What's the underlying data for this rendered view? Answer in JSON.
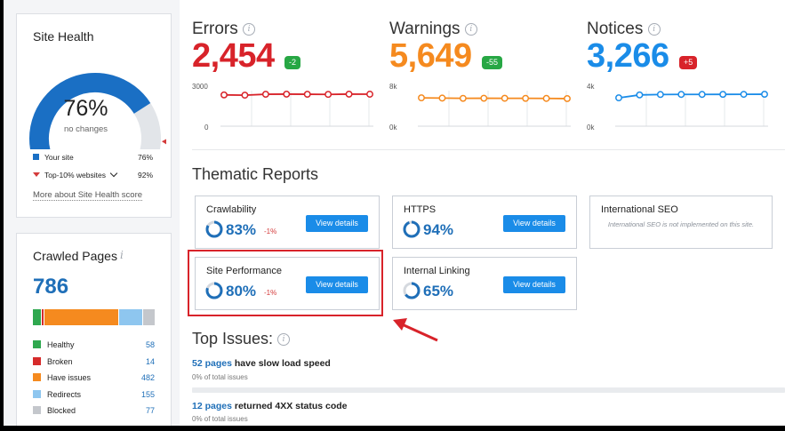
{
  "site_health": {
    "title": "Site Health",
    "score": "76%",
    "change_text": "no changes",
    "score_value": 0.76,
    "top10_value": 0.92,
    "legend": [
      {
        "label": "Your site",
        "value": "76%",
        "color": "#1f6fb8"
      },
      {
        "label": "Top-10% websites",
        "value": "92%",
        "color": "#d43b3b"
      }
    ],
    "link": "More about Site Health score"
  },
  "crawled_pages": {
    "title": "Crawled Pages",
    "total": "786",
    "categories": [
      {
        "label": "Healthy",
        "value": "58",
        "count": 58,
        "color": "#2fa84f"
      },
      {
        "label": "Broken",
        "value": "14",
        "count": 14,
        "color": "#d62b2b"
      },
      {
        "label": "Have issues",
        "value": "482",
        "count": 482,
        "color": "#f58a1f"
      },
      {
        "label": "Redirects",
        "value": "155",
        "count": 155,
        "color": "#8ec6ef"
      },
      {
        "label": "Blocked",
        "value": "77",
        "count": 77,
        "color": "#c4c7cc"
      }
    ]
  },
  "metrics": [
    {
      "title": "Errors",
      "value": "2,454",
      "badge": "-2",
      "badge_color": "#27a744",
      "color": "#d8232a",
      "y_top": "3000",
      "y_bottom": "0",
      "ymax": 3000,
      "series": [
        2400,
        2380,
        2450,
        2460,
        2450,
        2440,
        2460,
        2454
      ]
    },
    {
      "title": "Warnings",
      "value": "5,649",
      "badge": "-55",
      "badge_color": "#27a744",
      "color": "#f58a1f",
      "y_top": "8k",
      "y_bottom": "0k",
      "ymax": 8000,
      "series": [
        5800,
        5750,
        5700,
        5720,
        5710,
        5700,
        5680,
        5649
      ]
    },
    {
      "title": "Notices",
      "value": "3,266",
      "badge": "+5",
      "badge_color": "#d8232a",
      "color": "#1a8ce8",
      "y_top": "4k",
      "y_bottom": "0k",
      "ymax": 4000,
      "series": [
        2900,
        3200,
        3240,
        3250,
        3250,
        3255,
        3260,
        3266
      ]
    }
  ],
  "thematic": {
    "heading": "Thematic Reports",
    "cards": [
      {
        "title": "Crawlability",
        "pct": "83%",
        "value": 0.83,
        "delta": "-1%",
        "button": "View details"
      },
      {
        "title": "HTTPS",
        "pct": "94%",
        "value": 0.94,
        "delta": "",
        "button": "View details"
      },
      {
        "title": "International SEO",
        "note": "International SEO is not implemented on this site."
      },
      {
        "title": "Site Performance",
        "pct": "80%",
        "value": 0.8,
        "delta": "-1%",
        "button": "View details"
      },
      {
        "title": "Internal Linking",
        "pct": "65%",
        "value": 0.65,
        "delta": "",
        "button": "View details"
      }
    ]
  },
  "top_issues": {
    "heading": "Top Issues:",
    "items": [
      {
        "link": "52 pages",
        "text": " have slow load speed",
        "sub": "0% of total issues"
      },
      {
        "link": "12 pages",
        "text": " returned 4XX status code",
        "sub": "0% of total issues"
      }
    ]
  },
  "colors": {
    "highlight": "#d8232a",
    "accent": "#1a8ce8"
  }
}
